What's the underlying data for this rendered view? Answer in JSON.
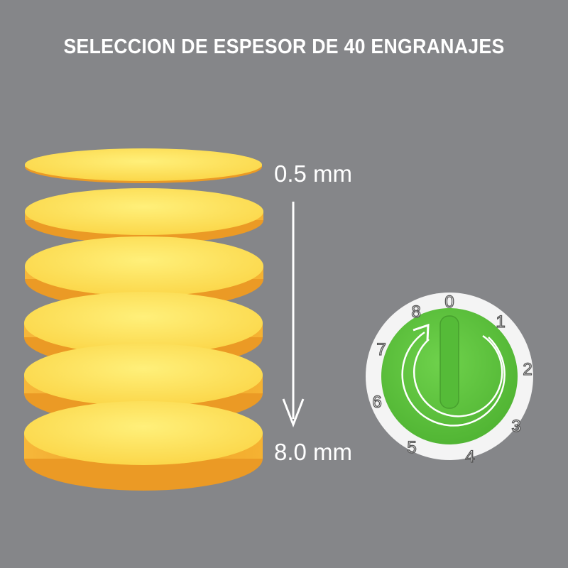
{
  "title": "SELECCION DE ESPESOR DE 40 ENGRANAJES",
  "thickness_min_label": "0.5 mm",
  "thickness_max_label": "8.0 mm",
  "dial": {
    "numbers": [
      "0",
      "1",
      "2",
      "3",
      "4",
      "5",
      "6",
      "7",
      "8"
    ],
    "knob_color": "#5cc43c",
    "ring_color": "#ffffff",
    "icon": "rotate-clockwise-arrow-icon"
  },
  "colors": {
    "background": "#858689",
    "slice_top": "#fde25a",
    "slice_edge": "#f0a42a"
  }
}
